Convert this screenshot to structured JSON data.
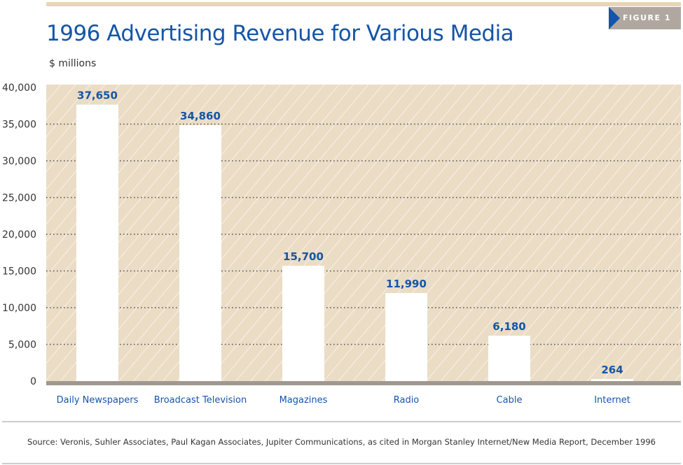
{
  "header": {
    "figure_label": "FIGURE 1",
    "title": "1996 Advertising Revenue for Various Media",
    "unit": "$ millions"
  },
  "chart_data": {
    "type": "bar",
    "title": "1996 Advertising Revenue for Various Media",
    "ylabel": "$ millions",
    "xlabel": "",
    "categories": [
      "Daily Newspapers",
      "Broadcast Television",
      "Magazines",
      "Radio",
      "Cable",
      "Internet"
    ],
    "values": [
      37650,
      34860,
      15700,
      11990,
      6180,
      264
    ],
    "value_labels": [
      "37,650",
      "34,860",
      "15,700",
      "11,990",
      "6,180",
      "264"
    ],
    "ylim": [
      0,
      40000
    ],
    "yticks": [
      0,
      5000,
      10000,
      15000,
      20000,
      25000,
      30000,
      35000,
      40000
    ],
    "ytick_labels": [
      "0",
      "5,000",
      "10,000",
      "15,000",
      "20,000",
      "25,000",
      "30,000",
      "35,000",
      "40,000"
    ],
    "grid": true,
    "colors": {
      "bar": "#ffffff",
      "plot_bg": "#ebdcc5",
      "label": "#1455a8",
      "baseline": "#a09890"
    }
  },
  "footer": {
    "source": "Source: Veronis, Suhler Associates, Paul Kagan Associates, Jupiter Communications, as cited in Morgan Stanley Internet/New Media Report, December 1996"
  }
}
